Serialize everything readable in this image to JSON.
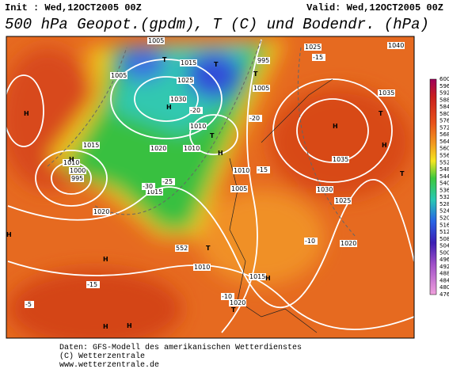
{
  "header": {
    "init": "Init : Wed,12OCT2005 00Z",
    "valid": "Valid: Wed,12OCT2005 00Z",
    "title": "500 hPa Geopot.(gpdm), T (C) und Bodendr. (hPa)"
  },
  "colorbar": {
    "labels": [
      600,
      596,
      592,
      588,
      584,
      580,
      576,
      572,
      568,
      564,
      560,
      556,
      552,
      548,
      544,
      540,
      536,
      532,
      528,
      524,
      520,
      516,
      512,
      508,
      504,
      500,
      496,
      492,
      488,
      484,
      480,
      476
    ]
  },
  "map": {
    "labels": [
      "1005",
      "1005",
      "1015",
      "1025",
      "1030",
      "1010",
      "1010",
      "1020",
      "1015",
      "1010",
      "1000",
      "995",
      "1020",
      "1015",
      "1010",
      "1005",
      "995",
      "1005",
      "1025",
      "1040",
      "1035",
      "1035",
      "1030",
      "1025",
      "1020",
      "1015",
      "1020",
      "1010",
      "H",
      "T",
      "T",
      "T",
      "T",
      "H",
      "H",
      "T",
      "H",
      "H",
      "H",
      "H",
      "H",
      "H",
      "T",
      "H",
      "T",
      "H",
      "T",
      "-20",
      "-25",
      "-30",
      "-15",
      "-15",
      "-10",
      "-5",
      "-15",
      "-10",
      "-20",
      "552"
    ]
  },
  "footer": {
    "lines": [
      "Daten: GFS-Modell des amerikanischen Wetterdienstes",
      "(C) Wetterzentrale",
      "www.wetterzentrale.de"
    ]
  }
}
